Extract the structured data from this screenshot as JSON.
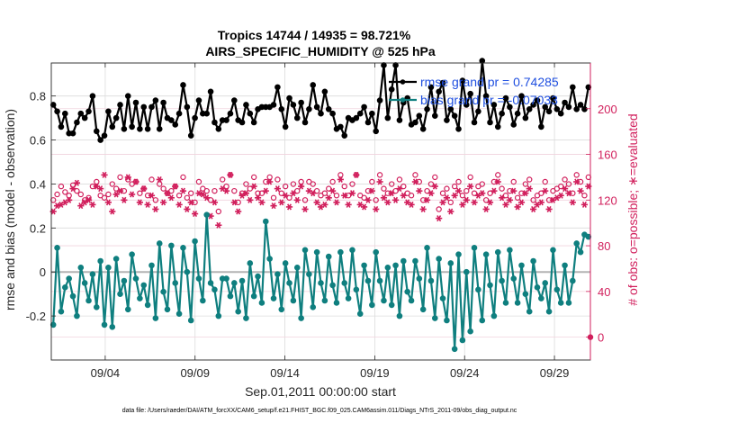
{
  "chart_data": {
    "type": "line",
    "title_line1": "Tropics 14744 / 14935 = 98.721%",
    "title_line2": "AIRS_SPECIFIC_HUMIDITY @ 525 hPa",
    "xlabel": "Sep.01,2011 00:00:00 start",
    "ylabel_left": "rmse and bias (model - observation)",
    "ylabel_right": "# of obs: o=possible; ∗=evaluated",
    "footer": "data file: /Users/raeder/DAI/ATM_forcXX/CAM6_setup/f.e21.FHIST_BGC.f09_025.CAM6assim.011/Diags_NTrS_2011-09/obs_diag_output.nc",
    "x_range_days": [
      0.5,
      30.5
    ],
    "ylim_left": [
      -0.4,
      0.95
    ],
    "ylim_right": [
      -20,
      240
    ],
    "x_ticks": [
      {
        "day": 3.5,
        "label": "09/04"
      },
      {
        "day": 8.5,
        "label": "09/09"
      },
      {
        "day": 13.5,
        "label": "09/14"
      },
      {
        "day": 18.5,
        "label": "09/19"
      },
      {
        "day": 23.5,
        "label": "09/24"
      },
      {
        "day": 28.5,
        "label": "09/29"
      }
    ],
    "y_ticks_left": [
      {
        "value": -0.2,
        "label": "-0.2"
      },
      {
        "value": 0,
        "label": "0"
      },
      {
        "value": 0.2,
        "label": "0.2"
      },
      {
        "value": 0.4,
        "label": "0.4"
      },
      {
        "value": 0.6,
        "label": "0.6"
      },
      {
        "value": 0.8,
        "label": "0.8"
      }
    ],
    "y_ticks_right": [
      {
        "value": 0,
        "label": "0"
      },
      {
        "value": 40,
        "label": "40"
      },
      {
        "value": 80,
        "label": "80"
      },
      {
        "value": 120,
        "label": "120"
      },
      {
        "value": 160,
        "label": "160"
      },
      {
        "value": 200,
        "label": "200"
      }
    ],
    "legend": {
      "position": "top-right",
      "rmse_label": "rmse grand pr = 0.74285",
      "bias_label": "bias grand pr = -0.07033"
    },
    "colors": {
      "rmse": "#000000",
      "bias": "#0F7F7F",
      "obs": "#D11F5C",
      "zero_line": "#B3B3B3"
    },
    "series": [
      {
        "name": "rmse",
        "axis": "left",
        "style": "line-marker",
        "values": [
          0.76,
          0.73,
          0.66,
          0.72,
          0.63,
          0.63,
          0.68,
          0.72,
          0.7,
          0.73,
          0.8,
          0.64,
          0.6,
          0.62,
          0.73,
          0.66,
          0.7,
          0.76,
          0.65,
          0.8,
          0.66,
          0.77,
          0.65,
          0.75,
          0.65,
          0.75,
          0.78,
          0.65,
          0.77,
          0.7,
          0.69,
          0.67,
          0.72,
          0.85,
          0.75,
          0.62,
          0.7,
          0.78,
          0.72,
          0.72,
          0.82,
          0.68,
          0.65,
          0.69,
          0.69,
          0.72,
          0.78,
          0.69,
          0.68,
          0.76,
          0.72,
          0.68,
          0.74,
          0.75,
          0.75,
          0.75,
          0.76,
          0.84,
          0.74,
          0.66,
          0.79,
          0.76,
          0.7,
          0.77,
          0.68,
          0.74,
          0.85,
          0.75,
          0.72,
          0.82,
          0.74,
          0.72,
          0.65,
          0.66,
          0.62,
          0.7,
          0.69,
          0.7,
          0.72,
          0.75,
          0.68,
          0.72,
          0.64,
          0.78,
          0.94,
          0.7,
          0.83,
          0.94,
          0.69,
          0.77,
          0.79,
          0.67,
          0.68,
          0.71,
          0.65,
          0.74,
          0.84,
          0.71,
          0.82,
          0.86,
          0.69,
          0.74,
          0.71,
          0.65,
          0.87,
          0.76,
          0.81,
          0.68,
          0.73,
          0.96,
          0.8,
          0.68,
          0.76,
          0.66,
          0.72,
          0.79,
          0.75,
          0.67,
          0.72,
          0.8,
          0.7,
          0.74,
          0.76,
          0.78,
          0.66,
          0.75,
          0.73,
          0.79,
          0.74,
          0.72,
          0.77,
          0.75,
          0.84,
          0.74,
          0.76,
          0.74,
          0.84
        ]
      },
      {
        "name": "bias",
        "axis": "left",
        "style": "line-marker",
        "values": [
          -0.24,
          0.11,
          -0.18,
          -0.07,
          -0.03,
          -0.11,
          -0.2,
          0.02,
          -0.05,
          -0.13,
          -0.01,
          -0.16,
          0.05,
          -0.24,
          0.02,
          -0.25,
          0.06,
          -0.1,
          -0.04,
          -0.17,
          0.08,
          -0.03,
          -0.12,
          -0.06,
          -0.15,
          0.03,
          -0.21,
          0.13,
          -0.09,
          -0.17,
          0.12,
          -0.05,
          -0.19,
          0.11,
          0.0,
          -0.22,
          0.14,
          -0.03,
          -0.13,
          0.26,
          -0.05,
          -0.08,
          -0.2,
          -0.03,
          -0.03,
          -0.11,
          -0.05,
          -0.18,
          -0.04,
          -0.21,
          0.04,
          -0.11,
          -0.02,
          -0.14,
          0.23,
          0.06,
          -0.12,
          -0.01,
          -0.17,
          0.04,
          -0.05,
          -0.13,
          0.02,
          -0.21,
          0.1,
          -0.01,
          -0.16,
          0.09,
          -0.05,
          -0.13,
          0.07,
          -0.06,
          -0.14,
          0.09,
          -0.05,
          -0.12,
          0.1,
          -0.08,
          -0.19,
          0.03,
          -0.04,
          -0.15,
          0.09,
          -0.04,
          -0.13,
          0.02,
          -0.15,
          0.03,
          -0.2,
          0.05,
          -0.09,
          -0.13,
          0.05,
          -0.03,
          -0.17,
          0.11,
          -0.04,
          -0.21,
          0.06,
          -0.12,
          -0.22,
          0.04,
          -0.35,
          0.08,
          -0.31,
          0.0,
          -0.27,
          0.11,
          -0.08,
          -0.22,
          0.08,
          -0.06,
          -0.2,
          0.09,
          -0.04,
          -0.14,
          0.1,
          -0.03,
          -0.14,
          0.03,
          -0.1,
          -0.18,
          0.05,
          -0.07,
          -0.12,
          -0.05,
          -0.18,
          0.1,
          -0.08,
          -0.14,
          0.03,
          -0.14,
          -0.04,
          0.13,
          0.09,
          0.17,
          0.16
        ]
      },
      {
        "name": "obs_evaluated",
        "axis": "right",
        "style": "star",
        "values": [
          110,
          115,
          116,
          118,
          120,
          130,
          135,
          115,
          118,
          120,
          116,
          132,
          130,
          142,
          118,
          110,
          125,
          128,
          120,
          140,
          125,
          136,
          118,
          130,
          116,
          124,
          112,
          138,
          118,
          126,
          122,
          132,
          116,
          128,
          112,
          118,
          108,
          126,
          125,
          122,
          106,
          118,
          98,
          130,
          128,
          142,
          118,
          110,
          124,
          126,
          120,
          132,
          122,
          118,
          128,
          136,
          115,
          130,
          118,
          124,
          114,
          126,
          120,
          132,
          112,
          128,
          126,
          118,
          114,
          116,
          122,
          128,
          118,
          138,
          124,
          116,
          126,
          142,
          116,
          114,
          120,
          128,
          112,
          136,
          122,
          118,
          126,
          120,
          130,
          124,
          118,
          116,
          136,
          128,
          112,
          120,
          126,
          132,
          104,
          118,
          122,
          110,
          124,
          128,
          116,
          120,
          132,
          118,
          124,
          126,
          112,
          118,
          128,
          136,
          122,
          116,
          120,
          128,
          114,
          118,
          126,
          130,
          112,
          116,
          118,
          128,
          112,
          120,
          122,
          124,
          130,
          126,
          118,
          136,
          128,
          116,
          132
        ]
      },
      {
        "name": "obs_possible",
        "axis": "right",
        "style": "circle",
        "values": [
          120,
          125,
          132,
          127,
          124,
          133,
          128,
          125,
          120,
          122,
          132,
          136,
          124,
          122,
          125,
          134,
          130,
          140,
          128,
          138,
          134,
          136,
          126,
          130,
          124,
          138,
          120,
          134,
          130,
          126,
          128,
          132,
          124,
          140,
          122,
          126,
          118,
          136,
          130,
          128,
          120,
          128,
          110,
          138,
          132,
          142,
          128,
          118,
          126,
          134,
          130,
          140,
          126,
          126,
          136,
          140,
          122,
          138,
          126,
          132,
          122,
          134,
          128,
          136,
          120,
          136,
          134,
          128,
          124,
          126,
          130,
          136,
          124,
          142,
          132,
          124,
          134,
          142,
          124,
          122,
          128,
          136,
          120,
          142,
          130,
          126,
          134,
          128,
          138,
          132,
          126,
          124,
          142,
          136,
          120,
          128,
          134,
          140,
          112,
          126,
          130,
          118,
          132,
          136,
          124,
          128,
          140,
          126,
          132,
          134,
          120,
          126,
          136,
          142,
          130,
          124,
          128,
          136,
          122,
          126,
          134,
          138,
          120,
          124,
          126,
          136,
          120,
          128,
          130,
          132,
          138,
          134,
          126,
          142,
          136,
          124,
          140
        ]
      }
    ]
  }
}
